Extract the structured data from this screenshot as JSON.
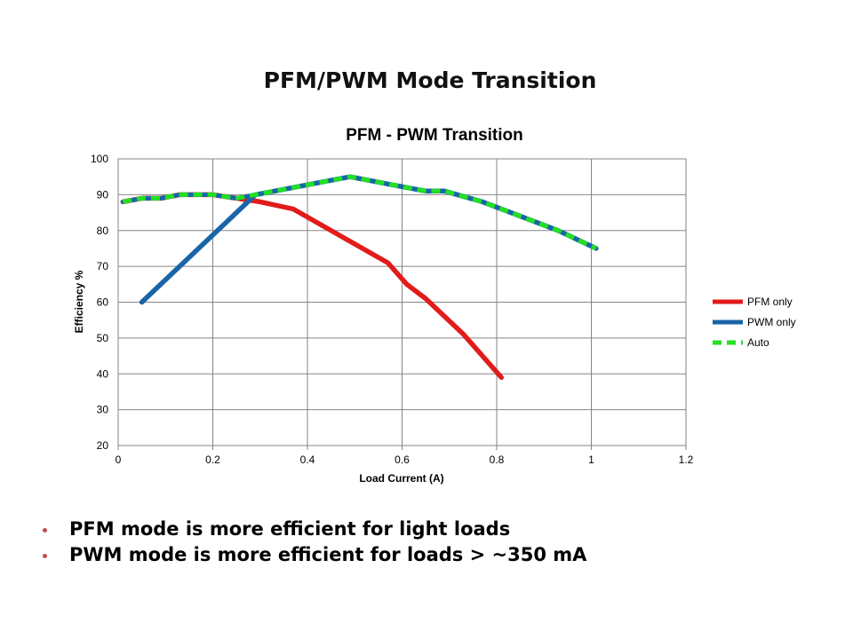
{
  "slide": {
    "title": "PFM/PWM Mode Transition",
    "bullet_color": "#C0504D",
    "bullets": [
      "PFM mode is more efficient for light loads",
      "PWM mode is more efficient for loads > ~350 mA"
    ]
  },
  "chart_data": {
    "type": "line",
    "title": "PFM - PWM Transition",
    "xlabel": "Load Current (A)",
    "ylabel": "Efficiency %",
    "xlim": [
      0,
      1.2
    ],
    "ylim": [
      20,
      100
    ],
    "xticks": [
      0,
      0.2,
      0.4,
      0.6,
      0.8,
      1,
      1.2
    ],
    "xtick_labels": [
      "0",
      "0.2",
      "0.4",
      "0.6",
      "0.8",
      "1",
      "1.2"
    ],
    "yticks": [
      20,
      30,
      40,
      50,
      60,
      70,
      80,
      90,
      100
    ],
    "ytick_labels": [
      "20",
      "30",
      "40",
      "50",
      "60",
      "70",
      "80",
      "90",
      "100"
    ],
    "grid": true,
    "legend_position": "right",
    "series": [
      {
        "name": "PFM only",
        "color": "#E21B1B",
        "dashed": false,
        "points": [
          [
            0.01,
            88
          ],
          [
            0.05,
            89
          ],
          [
            0.09,
            89
          ],
          [
            0.13,
            90
          ],
          [
            0.2,
            90
          ],
          [
            0.25,
            89
          ],
          [
            0.3,
            88
          ],
          [
            0.37,
            86
          ],
          [
            0.41,
            83
          ],
          [
            0.49,
            77
          ],
          [
            0.53,
            74
          ],
          [
            0.57,
            71
          ],
          [
            0.61,
            65
          ],
          [
            0.65,
            61
          ],
          [
            0.69,
            56
          ],
          [
            0.73,
            51
          ],
          [
            0.77,
            45
          ],
          [
            0.81,
            39
          ]
        ]
      },
      {
        "name": "PWM only",
        "color": "#1A64A8",
        "dashed": false,
        "points": [
          [
            0.05,
            60
          ],
          [
            0.13,
            70
          ],
          [
            0.21,
            80
          ],
          [
            0.29,
            90
          ],
          [
            0.37,
            92
          ],
          [
            0.45,
            94
          ],
          [
            0.49,
            95
          ],
          [
            0.53,
            94
          ],
          [
            0.57,
            93
          ],
          [
            0.65,
            91
          ],
          [
            0.69,
            91
          ],
          [
            0.77,
            88
          ],
          [
            0.85,
            84
          ],
          [
            0.93,
            80
          ],
          [
            1.01,
            75
          ]
        ]
      },
      {
        "name": "Auto",
        "color": "#22E022",
        "dashed": true,
        "points": [
          [
            0.01,
            88
          ],
          [
            0.05,
            89
          ],
          [
            0.09,
            89
          ],
          [
            0.13,
            90
          ],
          [
            0.2,
            90
          ],
          [
            0.25,
            89
          ],
          [
            0.29,
            90
          ],
          [
            0.37,
            92
          ],
          [
            0.45,
            94
          ],
          [
            0.49,
            95
          ],
          [
            0.53,
            94
          ],
          [
            0.57,
            93
          ],
          [
            0.65,
            91
          ],
          [
            0.69,
            91
          ],
          [
            0.77,
            88
          ],
          [
            0.85,
            84
          ],
          [
            0.93,
            80
          ],
          [
            1.01,
            75
          ]
        ]
      }
    ]
  }
}
